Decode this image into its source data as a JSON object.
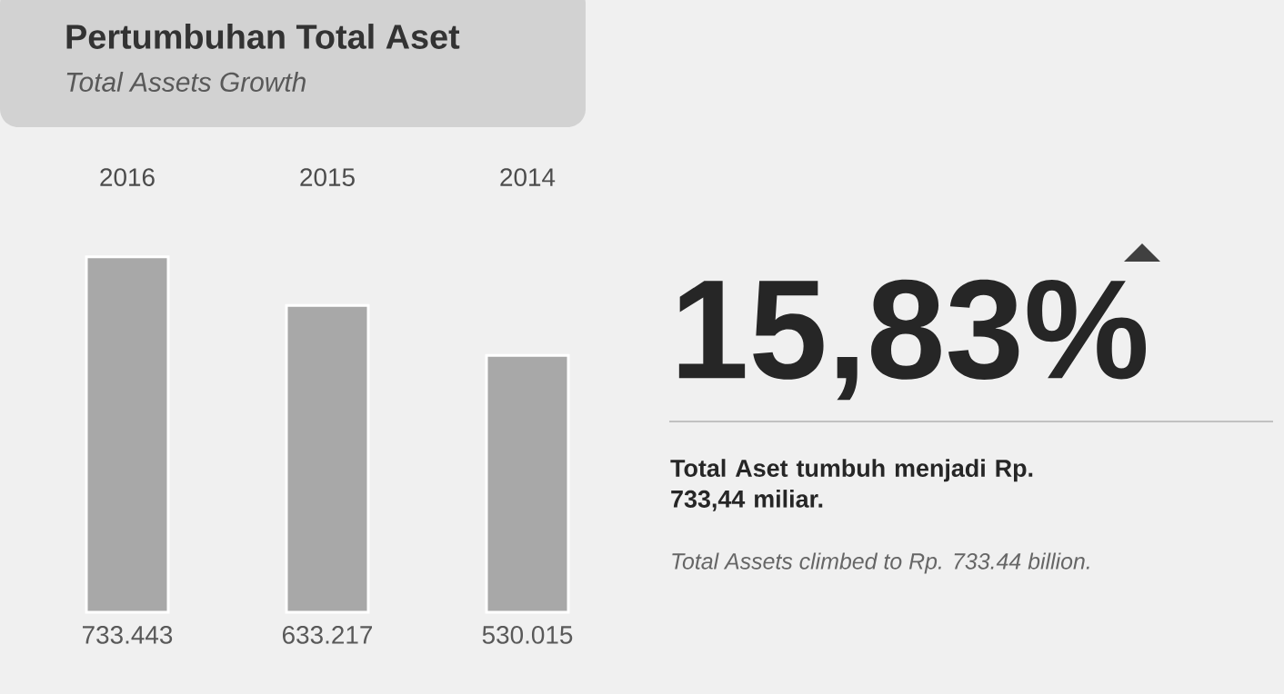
{
  "chart_data": {
    "type": "bar",
    "title": "Pertumbuhan Total Aset",
    "subtitle": "Total Assets Growth",
    "categories": [
      "2016",
      "2015",
      "2014"
    ],
    "values": [
      733.443,
      633.217,
      530.015
    ],
    "color": "#a8a8a8",
    "data_labels": true,
    "annotations": [
      "15,83%",
      "Total Aset tumbuh menjadi Rp. 733,44 miliar.",
      "Total Assets climbed to Rp. 733.44 billion."
    ]
  }
}
